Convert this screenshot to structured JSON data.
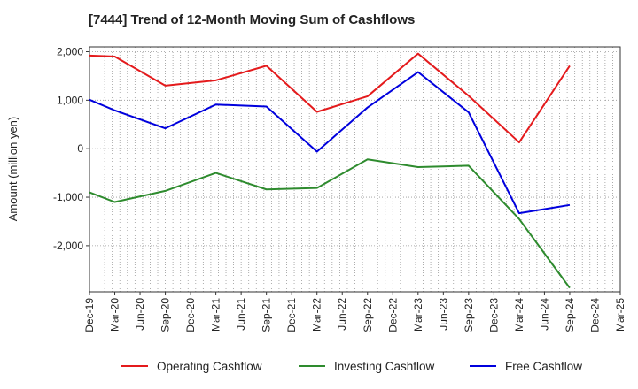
{
  "chart_data": {
    "type": "line",
    "title": "[7444]  Trend of 12-Month Moving Sum of Cashflows",
    "ylabel": "Amount (million yen)",
    "xlabel": "",
    "ylim": [
      -2950,
      2100
    ],
    "yticks": [
      2000,
      1000,
      0,
      -1000,
      -2000
    ],
    "ytick_labels": [
      "2,000",
      "1,000",
      "0",
      "-1,000",
      "-2,000"
    ],
    "categories": [
      "Dec-19",
      "Mar-20",
      "Jun-20",
      "Sep-20",
      "Dec-20",
      "Mar-21",
      "Jun-21",
      "Sep-21",
      "Dec-21",
      "Mar-22",
      "Jun-22",
      "Sep-22",
      "Dec-22",
      "Mar-23",
      "Jun-23",
      "Sep-23",
      "Dec-23",
      "Mar-24",
      "Jun-24",
      "Sep-24",
      "Dec-24",
      "Mar-25"
    ],
    "grid": true,
    "legend_position": "bottom",
    "series": [
      {
        "name": "Operating Cashflow",
        "color": "#e41a1c",
        "values": [
          1920,
          1900,
          null,
          1300,
          null,
          1410,
          null,
          1710,
          null,
          760,
          null,
          1080,
          null,
          1960,
          null,
          1090,
          null,
          130,
          null,
          1710,
          null,
          null
        ]
      },
      {
        "name": "Investing Cashflow",
        "color": "#2e8b2e",
        "values": [
          -900,
          -1100,
          null,
          -870,
          null,
          -500,
          null,
          -840,
          null,
          -810,
          null,
          -220,
          null,
          -380,
          null,
          -350,
          null,
          -1450,
          null,
          -2870,
          null,
          null
        ]
      },
      {
        "name": "Free Cashflow",
        "color": "#0000dd",
        "values": [
          1010,
          790,
          null,
          420,
          null,
          910,
          null,
          870,
          null,
          -60,
          null,
          850,
          null,
          1580,
          null,
          750,
          null,
          -1330,
          null,
          -1160,
          null,
          null
        ]
      }
    ]
  }
}
